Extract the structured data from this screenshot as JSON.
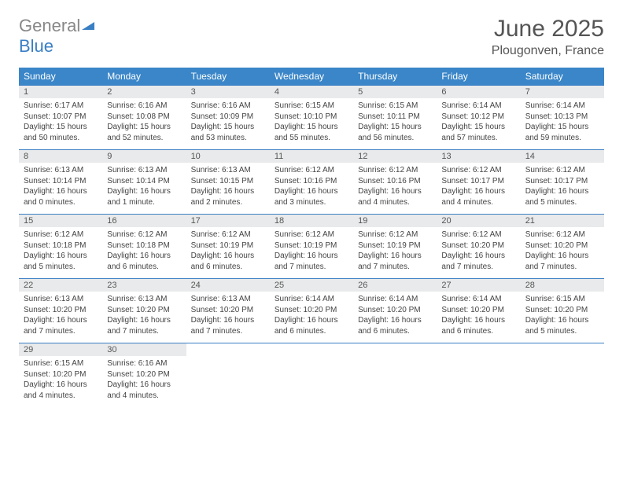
{
  "brand": {
    "part1": "General",
    "part2": "Blue"
  },
  "title": "June 2025",
  "location": "Plougonven, France",
  "colors": {
    "header_bg": "#3a86c8",
    "header_text": "#ffffff",
    "daynum_bg": "#e9eaeb",
    "border": "#3a7fc4",
    "text": "#444444",
    "brand_gray": "#888888",
    "brand_blue": "#3a7fc4"
  },
  "day_names": [
    "Sunday",
    "Monday",
    "Tuesday",
    "Wednesday",
    "Thursday",
    "Friday",
    "Saturday"
  ],
  "weeks": [
    [
      {
        "n": "1",
        "sr": "6:17 AM",
        "ss": "10:07 PM",
        "dl": "15 hours and 50 minutes."
      },
      {
        "n": "2",
        "sr": "6:16 AM",
        "ss": "10:08 PM",
        "dl": "15 hours and 52 minutes."
      },
      {
        "n": "3",
        "sr": "6:16 AM",
        "ss": "10:09 PM",
        "dl": "15 hours and 53 minutes."
      },
      {
        "n": "4",
        "sr": "6:15 AM",
        "ss": "10:10 PM",
        "dl": "15 hours and 55 minutes."
      },
      {
        "n": "5",
        "sr": "6:15 AM",
        "ss": "10:11 PM",
        "dl": "15 hours and 56 minutes."
      },
      {
        "n": "6",
        "sr": "6:14 AM",
        "ss": "10:12 PM",
        "dl": "15 hours and 57 minutes."
      },
      {
        "n": "7",
        "sr": "6:14 AM",
        "ss": "10:13 PM",
        "dl": "15 hours and 59 minutes."
      }
    ],
    [
      {
        "n": "8",
        "sr": "6:13 AM",
        "ss": "10:14 PM",
        "dl": "16 hours and 0 minutes."
      },
      {
        "n": "9",
        "sr": "6:13 AM",
        "ss": "10:14 PM",
        "dl": "16 hours and 1 minute."
      },
      {
        "n": "10",
        "sr": "6:13 AM",
        "ss": "10:15 PM",
        "dl": "16 hours and 2 minutes."
      },
      {
        "n": "11",
        "sr": "6:12 AM",
        "ss": "10:16 PM",
        "dl": "16 hours and 3 minutes."
      },
      {
        "n": "12",
        "sr": "6:12 AM",
        "ss": "10:16 PM",
        "dl": "16 hours and 4 minutes."
      },
      {
        "n": "13",
        "sr": "6:12 AM",
        "ss": "10:17 PM",
        "dl": "16 hours and 4 minutes."
      },
      {
        "n": "14",
        "sr": "6:12 AM",
        "ss": "10:17 PM",
        "dl": "16 hours and 5 minutes."
      }
    ],
    [
      {
        "n": "15",
        "sr": "6:12 AM",
        "ss": "10:18 PM",
        "dl": "16 hours and 5 minutes."
      },
      {
        "n": "16",
        "sr": "6:12 AM",
        "ss": "10:18 PM",
        "dl": "16 hours and 6 minutes."
      },
      {
        "n": "17",
        "sr": "6:12 AM",
        "ss": "10:19 PM",
        "dl": "16 hours and 6 minutes."
      },
      {
        "n": "18",
        "sr": "6:12 AM",
        "ss": "10:19 PM",
        "dl": "16 hours and 7 minutes."
      },
      {
        "n": "19",
        "sr": "6:12 AM",
        "ss": "10:19 PM",
        "dl": "16 hours and 7 minutes."
      },
      {
        "n": "20",
        "sr": "6:12 AM",
        "ss": "10:20 PM",
        "dl": "16 hours and 7 minutes."
      },
      {
        "n": "21",
        "sr": "6:12 AM",
        "ss": "10:20 PM",
        "dl": "16 hours and 7 minutes."
      }
    ],
    [
      {
        "n": "22",
        "sr": "6:13 AM",
        "ss": "10:20 PM",
        "dl": "16 hours and 7 minutes."
      },
      {
        "n": "23",
        "sr": "6:13 AM",
        "ss": "10:20 PM",
        "dl": "16 hours and 7 minutes."
      },
      {
        "n": "24",
        "sr": "6:13 AM",
        "ss": "10:20 PM",
        "dl": "16 hours and 7 minutes."
      },
      {
        "n": "25",
        "sr": "6:14 AM",
        "ss": "10:20 PM",
        "dl": "16 hours and 6 minutes."
      },
      {
        "n": "26",
        "sr": "6:14 AM",
        "ss": "10:20 PM",
        "dl": "16 hours and 6 minutes."
      },
      {
        "n": "27",
        "sr": "6:14 AM",
        "ss": "10:20 PM",
        "dl": "16 hours and 6 minutes."
      },
      {
        "n": "28",
        "sr": "6:15 AM",
        "ss": "10:20 PM",
        "dl": "16 hours and 5 minutes."
      }
    ],
    [
      {
        "n": "29",
        "sr": "6:15 AM",
        "ss": "10:20 PM",
        "dl": "16 hours and 4 minutes."
      },
      {
        "n": "30",
        "sr": "6:16 AM",
        "ss": "10:20 PM",
        "dl": "16 hours and 4 minutes."
      },
      null,
      null,
      null,
      null,
      null
    ]
  ],
  "labels": {
    "sunrise": "Sunrise:",
    "sunset": "Sunset:",
    "daylight": "Daylight:"
  }
}
